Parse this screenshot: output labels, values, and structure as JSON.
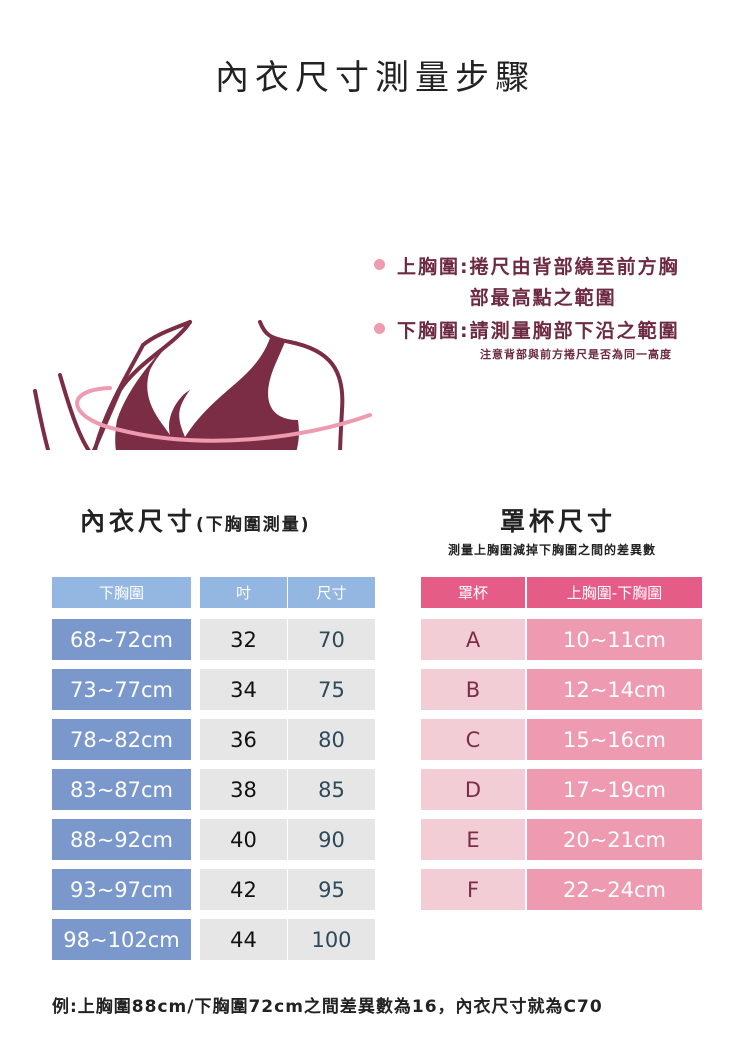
{
  "title": "內衣尺寸測量步驟",
  "legend": {
    "upper": {
      "label": "上胸圍:",
      "line1": "捲尺由背部繞至前方胸",
      "line2": "部最高點之範圍"
    },
    "lower": {
      "label": "下胸圍:",
      "line1": "請測量胸部下沿之範圍"
    },
    "note": "注意背部與前方捲尺是否為同一高度"
  },
  "left_table": {
    "title": "內衣尺寸",
    "title_paren": "(下胸圍測量)",
    "headers": [
      "下胸圍",
      "吋",
      "尺寸"
    ],
    "rows": [
      [
        "68~72cm",
        "32",
        "70"
      ],
      [
        "73~77cm",
        "34",
        "75"
      ],
      [
        "78~82cm",
        "36",
        "80"
      ],
      [
        "83~87cm",
        "38",
        "85"
      ],
      [
        "88~92cm",
        "40",
        "90"
      ],
      [
        "93~97cm",
        "42",
        "95"
      ],
      [
        "98~102cm",
        "44",
        "100"
      ]
    ]
  },
  "right_table": {
    "title": "罩杯尺寸",
    "subtitle": "測量上胸圍減掉下胸圍之間的差異數",
    "headers": [
      "罩杯",
      "上胸圍-下胸圍"
    ],
    "rows": [
      [
        "A",
        "10~11cm"
      ],
      [
        "B",
        "12~14cm"
      ],
      [
        "C",
        "15~16cm"
      ],
      [
        "D",
        "17~19cm"
      ],
      [
        "E",
        "20~21cm"
      ],
      [
        "F",
        "22~24cm"
      ]
    ]
  },
  "example": "例:上胸圍88cm/下胸圍72cm之間差異數為16，內衣尺寸就為C70",
  "colors": {
    "wine": "#7a2d45",
    "pink": "#ee9ab0",
    "pink_header": "#e55d87",
    "blue": "#7b98cc",
    "blue_header": "#93b7e0",
    "gray": "#e6e6e6"
  }
}
